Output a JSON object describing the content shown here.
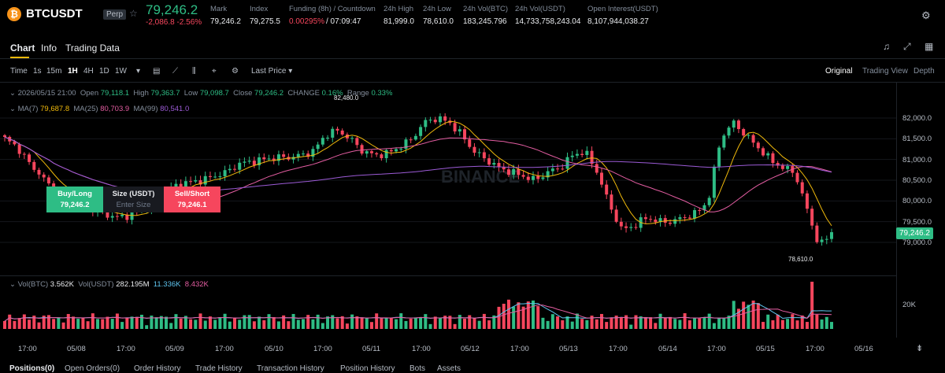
{
  "header": {
    "coin_icon": "bitcoin-icon",
    "symbol": "BTCUSDT",
    "badge": "Perp",
    "last_price": "79,246.2",
    "change": "-2,086.8 -2.56%",
    "stats": [
      {
        "label": "Mark",
        "value": "79,246.2"
      },
      {
        "label": "Index",
        "value": "79,275.5"
      },
      {
        "label": "Funding (8h) / Countdown",
        "value": "0.00295%",
        "value2": "/ 07:09:47"
      },
      {
        "label": "24h High",
        "value": "81,999.0"
      },
      {
        "label": "24h Low",
        "value": "78,610.0"
      },
      {
        "label": "24h Vol(BTC)",
        "value": "183,245.796"
      },
      {
        "label": "24h Vol(USDT)",
        "value": "14,733,758,243.04"
      },
      {
        "label": "Open Interest(USDT)",
        "value": "8,107,944,038.27"
      }
    ]
  },
  "tabs": [
    "Chart",
    "Info",
    "Trading Data"
  ],
  "toolbar": {
    "time_label": "Time",
    "intervals": [
      "1s",
      "15m",
      "1H",
      "4H",
      "1D",
      "1W"
    ],
    "active_interval": "1H",
    "price_type": "Last Price",
    "views": [
      "Original",
      "Trading View",
      "Depth"
    ],
    "active_view": "Original"
  },
  "legend": {
    "datetime": "2026/05/15 21:00",
    "open_label": "Open",
    "open": "79,118.1",
    "high_label": "High",
    "high": "79,363.7",
    "low_label": "Low",
    "low": "79,098.7",
    "close_label": "Close",
    "close": "79,246.2",
    "change_label": "CHANGE",
    "change": "0.16%",
    "range_label": "Range",
    "range": "0.33%",
    "ma7_label": "MA(7)",
    "ma7": "79,687.8",
    "ma25_label": "MA(25)",
    "ma25": "80,703.9",
    "ma99_label": "MA(99)",
    "ma99": "80,541.0",
    "vol_btc_label": "Vol(BTC)",
    "vol_btc": "3.562K",
    "vol_usdt_label": "Vol(USDT)",
    "vol_usdt": "282.195M",
    "vol_ma1": "11.336K",
    "vol_ma2": "8.432K"
  },
  "order_widget": {
    "buy_label": "Buy/Long",
    "buy_price": "79,246.2",
    "size_label": "Size (USDT)",
    "size_placeholder": "Enter Size",
    "sell_label": "Sell/Short",
    "sell_price": "79,246.1"
  },
  "price_axis": [
    "82,000.0",
    "81,500.0",
    "81,000.0",
    "80,500.0",
    "80,000.0",
    "79,500.0",
    "79,000.0"
  ],
  "volume_axis": [
    "20K"
  ],
  "time_axis": [
    "17:00",
    "05/08",
    "17:00",
    "05/09",
    "17:00",
    "05/10",
    "17:00",
    "05/11",
    "17:00",
    "05/12",
    "17:00",
    "05/13",
    "17:00",
    "05/14",
    "17:00",
    "05/15",
    "17:00",
    "05/16"
  ],
  "high_marker": "82,480.0",
  "low_marker": "78,610.0",
  "current_price_tag": "79,246.2",
  "watermark": "BINANCE",
  "bottom_tabs": [
    "Positions(0)",
    "Open Orders(0)",
    "Order History",
    "Trade History",
    "Transaction History",
    "Position History",
    "Bots",
    "Assets"
  ],
  "colors": {
    "up": "#2ebd85",
    "down": "#f6465d",
    "ma7": "#f0b90b",
    "ma25": "#e35da1",
    "ma99": "#9c5bd6",
    "accent": "#f0b90b"
  },
  "chart_data": {
    "type": "candlestick",
    "interval": "1H",
    "y_range": [
      78500,
      82500
    ],
    "x_ticks": [
      "17:00",
      "05/08",
      "17:00",
      "05/09",
      "17:00",
      "05/10",
      "17:00",
      "05/11",
      "17:00",
      "05/12",
      "17:00",
      "05/13",
      "17:00",
      "05/14",
      "17:00",
      "05/15",
      "17:00",
      "05/16"
    ],
    "close_path": [
      81500,
      81300,
      80900,
      80600,
      80200,
      80100,
      79900,
      79800,
      79700,
      79600,
      79650,
      79750,
      80000,
      80200,
      80400,
      80450,
      80500,
      80600,
      80700,
      80900,
      80950,
      81000,
      81050,
      81050,
      81100,
      81200,
      81600,
      81700,
      81500,
      81200,
      81100,
      81150,
      81300,
      81500,
      81900,
      82000,
      81900,
      81600,
      81200,
      81000,
      80800,
      80700,
      80600,
      80500,
      80700,
      80800,
      81100,
      81200,
      80700,
      79900,
      79300,
      79400,
      79600,
      79500,
      79500,
      79600,
      79700,
      80000,
      81500,
      81900,
      81600,
      81300,
      81000,
      80800,
      80700,
      79800,
      78900,
      79246
    ]
  }
}
